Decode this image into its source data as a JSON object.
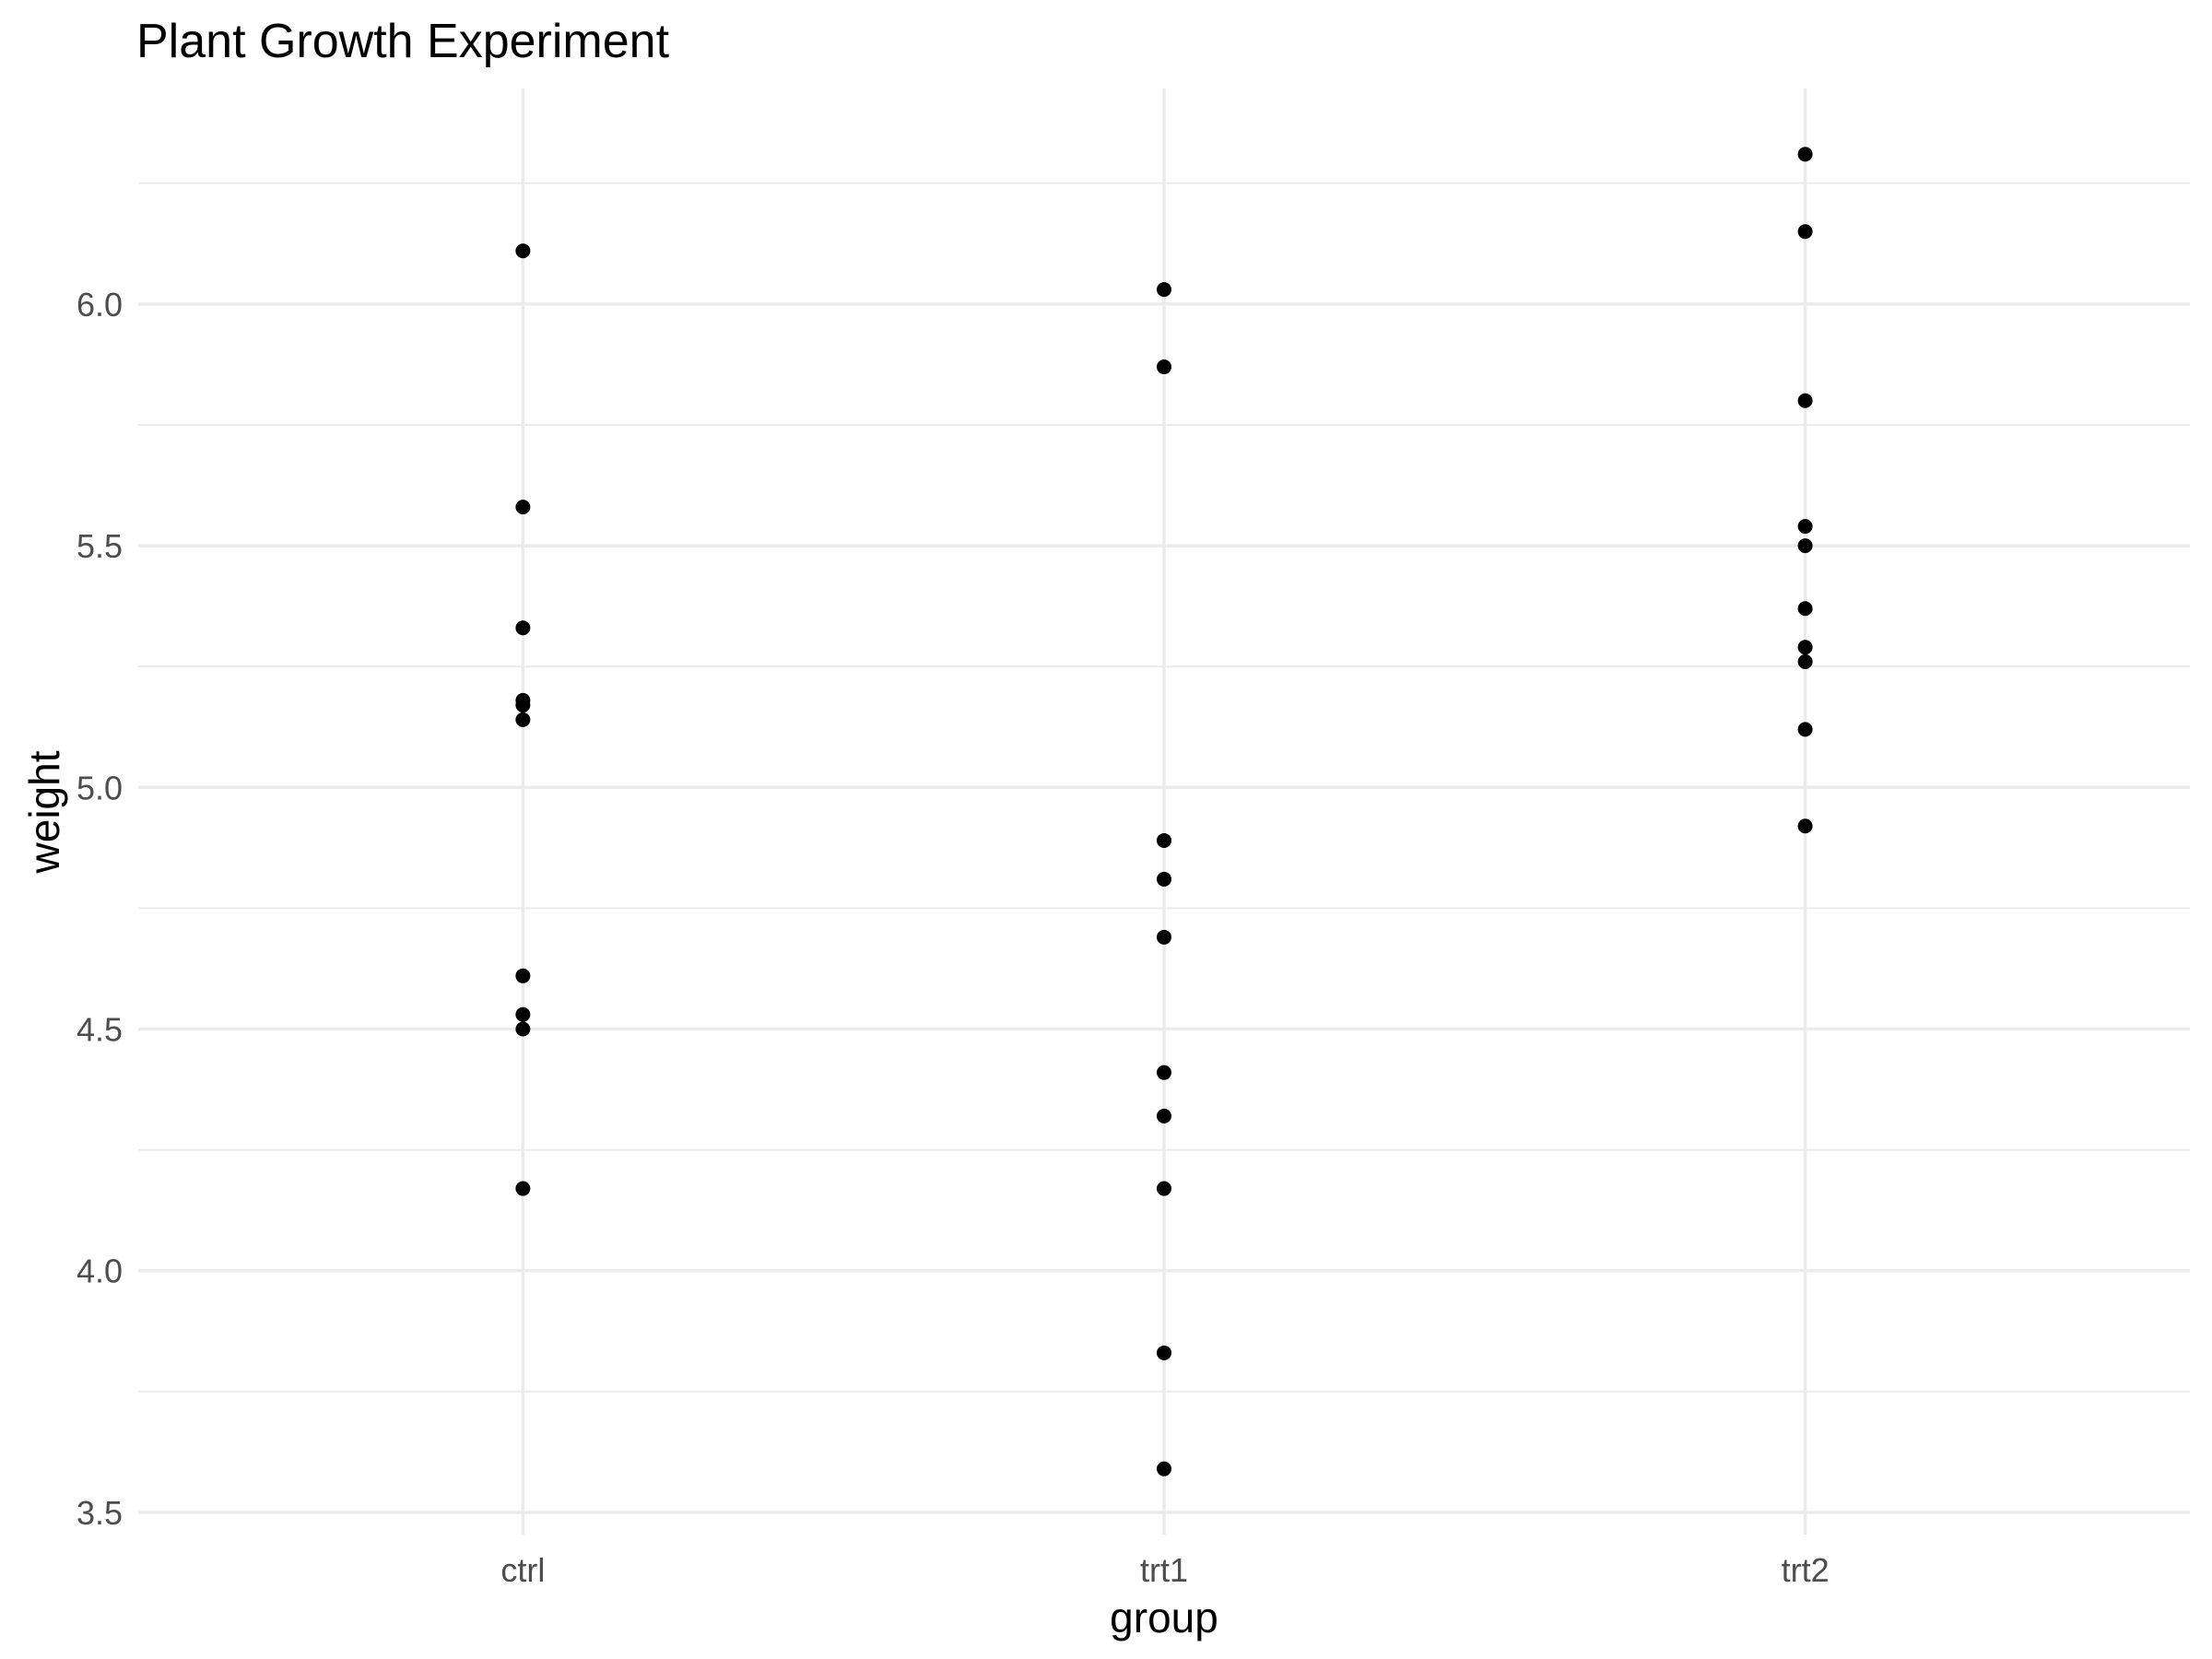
{
  "chart_data": {
    "type": "scatter",
    "title": "Plant Growth Experiment",
    "xlabel": "group",
    "ylabel": "weight",
    "categories": [
      "ctrl",
      "trt1",
      "trt2"
    ],
    "series": [
      {
        "name": "ctrl",
        "values": [
          4.17,
          5.58,
          5.18,
          6.11,
          4.5,
          4.61,
          5.17,
          4.53,
          5.33,
          5.14
        ]
      },
      {
        "name": "trt1",
        "values": [
          4.81,
          4.17,
          4.41,
          3.59,
          5.87,
          3.83,
          6.03,
          4.89,
          4.32,
          4.69
        ]
      },
      {
        "name": "trt2",
        "values": [
          6.31,
          5.12,
          5.54,
          5.5,
          5.37,
          5.29,
          4.92,
          6.15,
          5.8,
          5.26
        ]
      }
    ],
    "y_ticks": [
      3.5,
      4.0,
      4.5,
      5.0,
      5.5,
      6.0
    ],
    "y_tick_labels": [
      "3.5",
      "4.0",
      "4.5",
      "5.0",
      "5.5",
      "6.0"
    ],
    "y_minor_ticks": [
      3.75,
      4.25,
      4.75,
      5.25,
      5.75,
      6.25
    ],
    "ylim": [
      3.454,
      6.446
    ],
    "grid": true,
    "legend": "none"
  },
  "colors": {
    "point": "#000000",
    "grid_major": "#ebebeb",
    "grid_minor": "#ebebeb",
    "axis_text": "#4d4d4d",
    "title_text": "#000000",
    "background": "#ffffff"
  }
}
